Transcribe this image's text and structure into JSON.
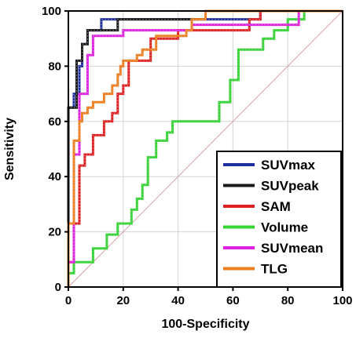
{
  "chart_data": {
    "type": "line",
    "title": "",
    "xlabel": "100-Specificity",
    "ylabel": "Sensitivity",
    "xlim": [
      0,
      100
    ],
    "ylim": [
      0,
      100
    ],
    "xticks": [
      0,
      20,
      40,
      60,
      80,
      100
    ],
    "yticks": [
      0,
      20,
      40,
      60,
      80,
      100
    ],
    "grid": true,
    "legend_position": "bottom-right",
    "reference_line": {
      "from": [
        0,
        0
      ],
      "to": [
        100,
        100
      ],
      "color": "#d9a0a0"
    },
    "series": [
      {
        "name": "SUVmax",
        "color": "#1f2f9e",
        "points": [
          [
            0,
            0
          ],
          [
            0,
            28
          ],
          [
            0,
            65
          ],
          [
            2,
            65
          ],
          [
            2,
            70
          ],
          [
            4,
            70
          ],
          [
            4,
            80
          ],
          [
            5,
            80
          ],
          [
            5,
            88
          ],
          [
            7,
            88
          ],
          [
            7,
            93
          ],
          [
            12,
            93
          ],
          [
            12,
            97
          ],
          [
            70,
            97
          ],
          [
            70,
            100
          ],
          [
            100,
            100
          ]
        ]
      },
      {
        "name": "SUVpeak",
        "color": "#1a1a1a",
        "points": [
          [
            0,
            0
          ],
          [
            0,
            28
          ],
          [
            0,
            65
          ],
          [
            3,
            65
          ],
          [
            3,
            82
          ],
          [
            5,
            82
          ],
          [
            5,
            88
          ],
          [
            7,
            88
          ],
          [
            7,
            93
          ],
          [
            18,
            93
          ],
          [
            18,
            97
          ],
          [
            50,
            97
          ],
          [
            50,
            100
          ],
          [
            100,
            100
          ]
        ]
      },
      {
        "name": "SAM",
        "color": "#e02020",
        "points": [
          [
            0,
            0
          ],
          [
            0,
            9
          ],
          [
            2,
            9
          ],
          [
            2,
            23
          ],
          [
            4,
            23
          ],
          [
            4,
            44
          ],
          [
            6,
            44
          ],
          [
            6,
            48
          ],
          [
            9,
            48
          ],
          [
            9,
            55
          ],
          [
            13,
            55
          ],
          [
            13,
            60
          ],
          [
            16,
            60
          ],
          [
            16,
            63
          ],
          [
            18,
            63
          ],
          [
            18,
            70
          ],
          [
            20,
            70
          ],
          [
            20,
            73
          ],
          [
            22,
            73
          ],
          [
            22,
            82
          ],
          [
            30,
            82
          ],
          [
            30,
            90
          ],
          [
            40,
            90
          ],
          [
            40,
            93
          ],
          [
            66,
            93
          ],
          [
            66,
            97
          ],
          [
            70,
            97
          ],
          [
            70,
            100
          ],
          [
            100,
            100
          ]
        ]
      },
      {
        "name": "Volume",
        "color": "#33d633",
        "points": [
          [
            0,
            0
          ],
          [
            0,
            5
          ],
          [
            2,
            5
          ],
          [
            2,
            9
          ],
          [
            9,
            9
          ],
          [
            9,
            14
          ],
          [
            14,
            14
          ],
          [
            14,
            19
          ],
          [
            18,
            19
          ],
          [
            18,
            23
          ],
          [
            23,
            23
          ],
          [
            23,
            28
          ],
          [
            25,
            28
          ],
          [
            25,
            32
          ],
          [
            27,
            32
          ],
          [
            27,
            37
          ],
          [
            29,
            37
          ],
          [
            29,
            47
          ],
          [
            32,
            47
          ],
          [
            32,
            53
          ],
          [
            36,
            53
          ],
          [
            36,
            56
          ],
          [
            38,
            56
          ],
          [
            38,
            60
          ],
          [
            55,
            60
          ],
          [
            55,
            67
          ],
          [
            59,
            67
          ],
          [
            59,
            75
          ],
          [
            62,
            75
          ],
          [
            62,
            86
          ],
          [
            71,
            86
          ],
          [
            71,
            90
          ],
          [
            75,
            90
          ],
          [
            75,
            93
          ],
          [
            80,
            93
          ],
          [
            80,
            97
          ],
          [
            86,
            97
          ],
          [
            86,
            100
          ],
          [
            100,
            100
          ]
        ]
      },
      {
        "name": "SUVmean",
        "color": "#e020e0",
        "points": [
          [
            0,
            0
          ],
          [
            0,
            9
          ],
          [
            2,
            9
          ],
          [
            2,
            48
          ],
          [
            4,
            48
          ],
          [
            4,
            70
          ],
          [
            7,
            70
          ],
          [
            7,
            84
          ],
          [
            9,
            84
          ],
          [
            9,
            91
          ],
          [
            20,
            91
          ],
          [
            20,
            93
          ],
          [
            45,
            93
          ],
          [
            45,
            95
          ],
          [
            84,
            95
          ],
          [
            84,
            100
          ],
          [
            100,
            100
          ]
        ]
      },
      {
        "name": "TLG",
        "color": "#f07e1c",
        "points": [
          [
            0,
            0
          ],
          [
            0,
            23
          ],
          [
            2,
            23
          ],
          [
            2,
            53
          ],
          [
            4,
            53
          ],
          [
            4,
            60
          ],
          [
            5,
            60
          ],
          [
            5,
            63
          ],
          [
            7,
            63
          ],
          [
            7,
            65
          ],
          [
            9,
            65
          ],
          [
            9,
            67
          ],
          [
            13,
            67
          ],
          [
            13,
            70
          ],
          [
            16,
            70
          ],
          [
            16,
            73
          ],
          [
            18,
            73
          ],
          [
            18,
            77
          ],
          [
            19,
            77
          ],
          [
            19,
            80
          ],
          [
            20,
            80
          ],
          [
            20,
            82
          ],
          [
            25,
            82
          ],
          [
            25,
            84
          ],
          [
            27,
            84
          ],
          [
            27,
            86
          ],
          [
            32,
            86
          ],
          [
            32,
            91
          ],
          [
            43,
            91
          ],
          [
            43,
            93
          ],
          [
            45,
            93
          ],
          [
            45,
            97
          ],
          [
            50,
            97
          ],
          [
            50,
            100
          ],
          [
            100,
            100
          ]
        ]
      }
    ]
  }
}
